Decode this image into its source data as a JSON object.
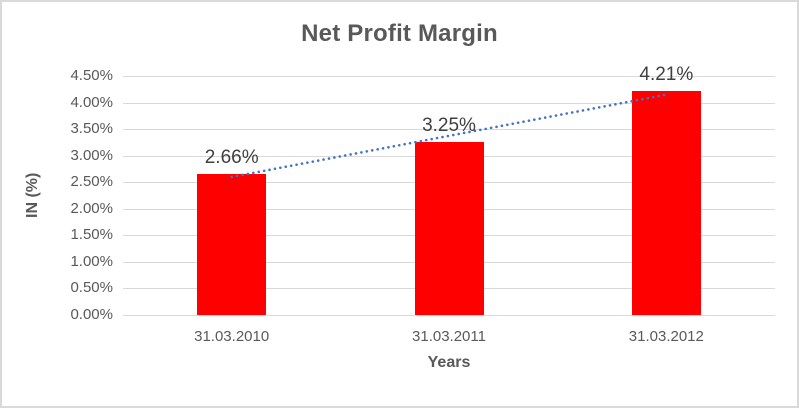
{
  "chart_data": {
    "type": "bar",
    "title": "Net Profit Margin",
    "xlabel": "Years",
    "ylabel": "IN (%)",
    "categories": [
      "31.03.2010",
      "31.03.2011",
      "31.03.2012"
    ],
    "values": [
      2.66,
      3.25,
      4.21
    ],
    "data_labels": [
      "2.66%",
      "3.25%",
      "4.21%"
    ],
    "y_ticks": [
      "0.00%",
      "0.50%",
      "1.00%",
      "1.50%",
      "2.00%",
      "2.50%",
      "3.00%",
      "3.50%",
      "4.00%",
      "4.50%"
    ],
    "ylim": [
      0,
      4.5
    ],
    "y_step": 0.5,
    "grid": true,
    "legend": "none",
    "bar_color": "#ff0000",
    "text_color": "#595959",
    "data_label_color": "#404040",
    "gridline_color": "#d9d9d9",
    "trendline": {
      "type": "linear",
      "style": "dotted",
      "color": "#4472c4"
    }
  }
}
